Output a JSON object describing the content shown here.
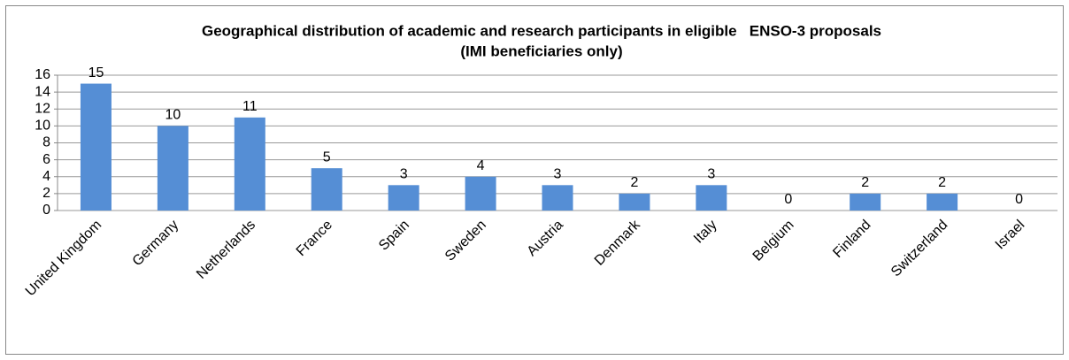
{
  "chart_data": {
    "type": "bar",
    "title": [
      "Geographical distribution of academic and research participants in eligible   ENSO-3 proposals",
      "(IMI beneficiaries only)"
    ],
    "categories": [
      "United Kingdom",
      "Germany",
      "Netherlands",
      "France",
      "Spain",
      "Sweden",
      "Austria",
      "Denmark",
      "Italy",
      "Belgium",
      "Finland",
      "Switzerland",
      "Israel"
    ],
    "values": [
      15,
      10,
      11,
      5,
      3,
      4,
      3,
      2,
      3,
      0,
      2,
      2,
      0
    ],
    "color": "#558ed5",
    "ylim": [
      0,
      16
    ],
    "yticks": [
      0,
      2,
      4,
      6,
      8,
      10,
      12,
      14,
      16
    ],
    "grid": true
  }
}
